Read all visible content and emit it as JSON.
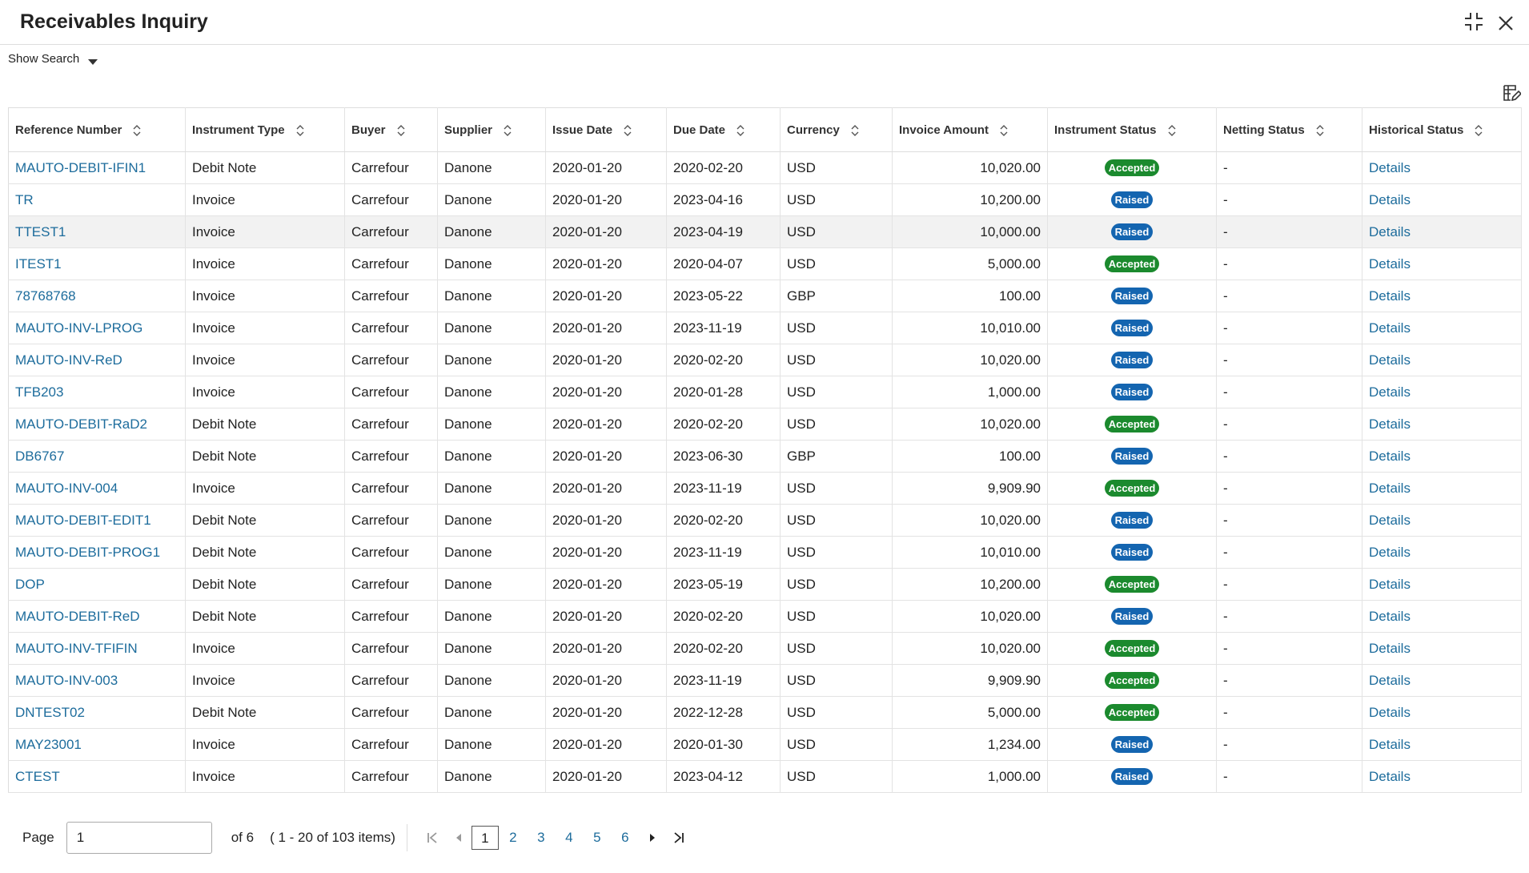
{
  "header": {
    "title": "Receivables Inquiry",
    "show_search": "Show Search"
  },
  "table": {
    "columns": [
      "Reference Number",
      "Instrument Type",
      "Buyer",
      "Supplier",
      "Issue Date",
      "Due Date",
      "Currency",
      "Invoice Amount",
      "Instrument Status",
      "Netting Status",
      "Historical Status"
    ],
    "rows": [
      [
        "MAUTO-DEBIT-IFIN1",
        "Debit Note",
        "Carrefour",
        "Danone",
        "2020-01-20",
        "2020-02-20",
        "USD",
        "10,020.00",
        "Accepted",
        "-",
        "Details"
      ],
      [
        "TR",
        "Invoice",
        "Carrefour",
        "Danone",
        "2020-01-20",
        "2023-04-16",
        "USD",
        "10,200.00",
        "Raised",
        "-",
        "Details"
      ],
      [
        "TTEST1",
        "Invoice",
        "Carrefour",
        "Danone",
        "2020-01-20",
        "2023-04-19",
        "USD",
        "10,000.00",
        "Raised",
        "-",
        "Details"
      ],
      [
        "ITEST1",
        "Invoice",
        "Carrefour",
        "Danone",
        "2020-01-20",
        "2020-04-07",
        "USD",
        "5,000.00",
        "Accepted",
        "-",
        "Details"
      ],
      [
        "78768768",
        "Invoice",
        "Carrefour",
        "Danone",
        "2020-01-20",
        "2023-05-22",
        "GBP",
        "100.00",
        "Raised",
        "-",
        "Details"
      ],
      [
        "MAUTO-INV-LPROG",
        "Invoice",
        "Carrefour",
        "Danone",
        "2020-01-20",
        "2023-11-19",
        "USD",
        "10,010.00",
        "Raised",
        "-",
        "Details"
      ],
      [
        "MAUTO-INV-ReD",
        "Invoice",
        "Carrefour",
        "Danone",
        "2020-01-20",
        "2020-02-20",
        "USD",
        "10,020.00",
        "Raised",
        "-",
        "Details"
      ],
      [
        "TFB203",
        "Invoice",
        "Carrefour",
        "Danone",
        "2020-01-20",
        "2020-01-28",
        "USD",
        "1,000.00",
        "Raised",
        "-",
        "Details"
      ],
      [
        "MAUTO-DEBIT-RaD2",
        "Debit Note",
        "Carrefour",
        "Danone",
        "2020-01-20",
        "2020-02-20",
        "USD",
        "10,020.00",
        "Accepted",
        "-",
        "Details"
      ],
      [
        "DB6767",
        "Debit Note",
        "Carrefour",
        "Danone",
        "2020-01-20",
        "2023-06-30",
        "GBP",
        "100.00",
        "Raised",
        "-",
        "Details"
      ],
      [
        "MAUTO-INV-004",
        "Invoice",
        "Carrefour",
        "Danone",
        "2020-01-20",
        "2023-11-19",
        "USD",
        "9,909.90",
        "Accepted",
        "-",
        "Details"
      ],
      [
        "MAUTO-DEBIT-EDIT1",
        "Debit Note",
        "Carrefour",
        "Danone",
        "2020-01-20",
        "2020-02-20",
        "USD",
        "10,020.00",
        "Raised",
        "-",
        "Details"
      ],
      [
        "MAUTO-DEBIT-PROG1",
        "Debit Note",
        "Carrefour",
        "Danone",
        "2020-01-20",
        "2023-11-19",
        "USD",
        "10,010.00",
        "Raised",
        "-",
        "Details"
      ],
      [
        "DOP",
        "Debit Note",
        "Carrefour",
        "Danone",
        "2020-01-20",
        "2023-05-19",
        "USD",
        "10,200.00",
        "Accepted",
        "-",
        "Details"
      ],
      [
        "MAUTO-DEBIT-ReD",
        "Debit Note",
        "Carrefour",
        "Danone",
        "2020-01-20",
        "2020-02-20",
        "USD",
        "10,020.00",
        "Raised",
        "-",
        "Details"
      ],
      [
        "MAUTO-INV-TFIFIN",
        "Invoice",
        "Carrefour",
        "Danone",
        "2020-01-20",
        "2020-02-20",
        "USD",
        "10,020.00",
        "Accepted",
        "-",
        "Details"
      ],
      [
        "MAUTO-INV-003",
        "Invoice",
        "Carrefour",
        "Danone",
        "2020-01-20",
        "2023-11-19",
        "USD",
        "9,909.90",
        "Accepted",
        "-",
        "Details"
      ],
      [
        "DNTEST02",
        "Debit Note",
        "Carrefour",
        "Danone",
        "2020-01-20",
        "2022-12-28",
        "USD",
        "5,000.00",
        "Accepted",
        "-",
        "Details"
      ],
      [
        "MAY23001",
        "Invoice",
        "Carrefour",
        "Danone",
        "2020-01-20",
        "2020-01-30",
        "USD",
        "1,234.00",
        "Raised",
        "-",
        "Details"
      ],
      [
        "CTEST",
        "Invoice",
        "Carrefour",
        "Danone",
        "2020-01-20",
        "2023-04-12",
        "USD",
        "1,000.00",
        "Raised",
        "-",
        "Details"
      ]
    ]
  },
  "pagination": {
    "label": "Page",
    "input": "1",
    "of_pages": "of 6",
    "items": "( 1 - 20 of 103 items)",
    "pages": [
      1,
      2,
      3,
      4,
      5,
      6
    ]
  }
}
